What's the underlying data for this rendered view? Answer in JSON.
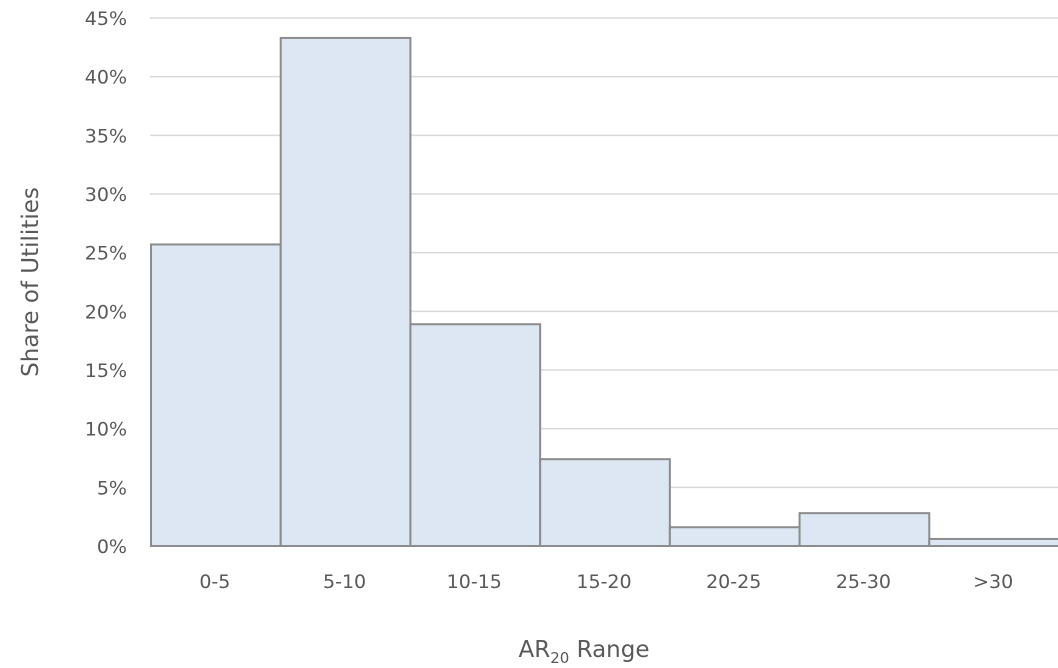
{
  "chart_data": {
    "type": "bar",
    "categories": [
      "0-5",
      "5-10",
      "10-15",
      "15-20",
      "20-25",
      "25-30",
      ">30"
    ],
    "series": [
      {
        "values": [
          25.7,
          43.3,
          18.9,
          7.4,
          1.6,
          2.8,
          0.6
        ]
      }
    ],
    "ylabel": "Share of Utilities",
    "xlabel": {
      "main": "AR",
      "subscript": "20",
      "suffix": " Range"
    },
    "ylim": [
      0,
      45
    ],
    "ytick_step": 5,
    "ytick_format": "percent",
    "grid": "horizontal",
    "bar_fill": "#dce7f3",
    "bar_stroke": "#8c8c8c",
    "gap": 0
  }
}
